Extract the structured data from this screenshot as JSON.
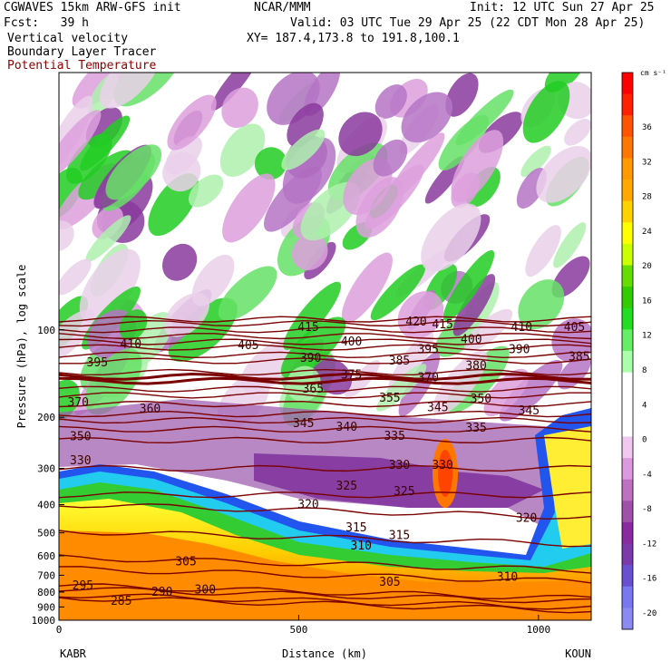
{
  "header": {
    "model_title": "CGWAVES 15km ARW-GFS init",
    "fcst": "Fcst:   39 h",
    "center": "NCAR/MMM",
    "init": "Init: 12 UTC Sun 27 Apr 25",
    "valid": "Valid: 03 UTC Tue 29 Apr 25 (22 CDT Mon 28 Apr 25)",
    "xy": "XY= 187.4,173.8 to 191.8,100.1",
    "field1": "Vertical velocity",
    "field2": "Boundary Layer Tracer",
    "field3": "Potential Temperature"
  },
  "colors": {
    "theta_contour": "#7a0000",
    "field3_text": "#8b0000"
  },
  "chart_data": {
    "type": "heatmap",
    "title": "Vertical velocity",
    "xlabel": "Distance (km)",
    "ylabel": "Pressure (hPa), log scale",
    "x_ticks": [
      "0",
      "500",
      "1000"
    ],
    "x_range": [
      0,
      1110
    ],
    "y_ticks": [
      "100",
      "200",
      "300",
      "400",
      "500",
      "600",
      "700",
      "800",
      "900",
      "1000"
    ],
    "y_scale": "log",
    "y_range": [
      1000,
      13
    ],
    "left_station": "KABR",
    "right_station": "KOUN",
    "colorbar": {
      "unit": "cm s⁻¹",
      "labels": [
        "36",
        "32",
        "28",
        "24",
        "20",
        "16",
        "12",
        "8",
        "4",
        "0",
        "-4",
        "-8",
        "-12",
        "-16",
        "-20"
      ],
      "colors": [
        "#ff0000",
        "#ff2200",
        "#ff5500",
        "#ff7700",
        "#ff9900",
        "#ffa900",
        "#ffd200",
        "#ffff00",
        "#ccff00",
        "#66dd00",
        "#33cc00",
        "#22dd22",
        "#66ee66",
        "#aaffaa",
        "#ffffff",
        "#ffffff",
        "#ffffff",
        "#f0c8f0",
        "#dd99dd",
        "#c070c0",
        "#a050a8",
        "#8a2aa0",
        "#7a3aaa",
        "#6a4fd0",
        "#7a78f0",
        "#8a8af0"
      ]
    },
    "theta_contours": [
      {
        "value": "285",
        "pressure": 880
      },
      {
        "value": "290",
        "pressure": 860
      },
      {
        "value": "295",
        "pressure": 820
      },
      {
        "value": "300",
        "pressure": 800
      },
      {
        "value": "305",
        "pressure": 700
      },
      {
        "value": "310",
        "pressure": 640
      },
      {
        "value": "315",
        "pressure": 520
      },
      {
        "value": "320",
        "pressure": 420
      },
      {
        "value": "325",
        "pressure": 370
      },
      {
        "value": "330",
        "pressure": 300
      },
      {
        "value": "335",
        "pressure": 240
      },
      {
        "value": "340",
        "pressure": 220
      },
      {
        "value": "345",
        "pressure": 205
      },
      {
        "value": "350",
        "pressure": 195
      },
      {
        "value": "355",
        "pressure": 180
      },
      {
        "value": "360",
        "pressure": 168
      },
      {
        "value": "365",
        "pressure": 160
      },
      {
        "value": "370",
        "pressure": 150
      },
      {
        "value": "375",
        "pressure": 145
      },
      {
        "value": "380",
        "pressure": 140
      },
      {
        "value": "385",
        "pressure": 128
      },
      {
        "value": "390",
        "pressure": 122
      },
      {
        "value": "395",
        "pressure": 115
      },
      {
        "value": "400",
        "pressure": 110
      },
      {
        "value": "405",
        "pressure": 105
      },
      {
        "value": "410",
        "pressure": 100
      },
      {
        "value": "415",
        "pressure": 95
      },
      {
        "value": "420",
        "pressure": 92
      }
    ],
    "contour_labels": [
      {
        "text": "410",
        "x": 150,
        "p": 112
      },
      {
        "text": "395",
        "x": 80,
        "p": 130
      },
      {
        "text": "370",
        "x": 40,
        "p": 178
      },
      {
        "text": "360",
        "x": 190,
        "p": 187
      },
      {
        "text": "350",
        "x": 45,
        "p": 233
      },
      {
        "text": "330",
        "x": 45,
        "p": 282
      },
      {
        "text": "405",
        "x": 395,
        "p": 113
      },
      {
        "text": "415",
        "x": 520,
        "p": 98
      },
      {
        "text": "420",
        "x": 745,
        "p": 94
      },
      {
        "text": "415",
        "x": 800,
        "p": 96
      },
      {
        "text": "410",
        "x": 965,
        "p": 98
      },
      {
        "text": "405",
        "x": 1075,
        "p": 98
      },
      {
        "text": "400",
        "x": 610,
        "p": 110
      },
      {
        "text": "400",
        "x": 860,
        "p": 108
      },
      {
        "text": "395",
        "x": 770,
        "p": 117
      },
      {
        "text": "390",
        "x": 525,
        "p": 125
      },
      {
        "text": "390",
        "x": 960,
        "p": 117
      },
      {
        "text": "385",
        "x": 710,
        "p": 128
      },
      {
        "text": "385",
        "x": 1085,
        "p": 124
      },
      {
        "text": "380",
        "x": 870,
        "p": 133
      },
      {
        "text": "375",
        "x": 610,
        "p": 143
      },
      {
        "text": "370",
        "x": 770,
        "p": 146
      },
      {
        "text": "365",
        "x": 530,
        "p": 160
      },
      {
        "text": "355",
        "x": 690,
        "p": 172
      },
      {
        "text": "350",
        "x": 880,
        "p": 173
      },
      {
        "text": "345",
        "x": 790,
        "p": 185
      },
      {
        "text": "345",
        "x": 510,
        "p": 210
      },
      {
        "text": "345",
        "x": 980,
        "p": 190
      },
      {
        "text": "340",
        "x": 600,
        "p": 216
      },
      {
        "text": "335",
        "x": 700,
        "p": 232
      },
      {
        "text": "335",
        "x": 870,
        "p": 218
      },
      {
        "text": "330",
        "x": 710,
        "p": 292
      },
      {
        "text": "330",
        "x": 800,
        "p": 292
      },
      {
        "text": "325",
        "x": 600,
        "p": 345
      },
      {
        "text": "325",
        "x": 720,
        "p": 360
      },
      {
        "text": "320",
        "x": 520,
        "p": 400
      },
      {
        "text": "320",
        "x": 975,
        "p": 445
      },
      {
        "text": "315",
        "x": 620,
        "p": 480
      },
      {
        "text": "315",
        "x": 710,
        "p": 510
      },
      {
        "text": "310",
        "x": 630,
        "p": 555
      },
      {
        "text": "310",
        "x": 935,
        "p": 710
      },
      {
        "text": "305",
        "x": 265,
        "p": 630
      },
      {
        "text": "305",
        "x": 690,
        "p": 740
      },
      {
        "text": "300",
        "x": 305,
        "p": 785
      },
      {
        "text": "295",
        "x": 50,
        "p": 760
      },
      {
        "text": "290",
        "x": 215,
        "p": 800
      },
      {
        "text": "285",
        "x": 130,
        "p": 860
      }
    ]
  }
}
